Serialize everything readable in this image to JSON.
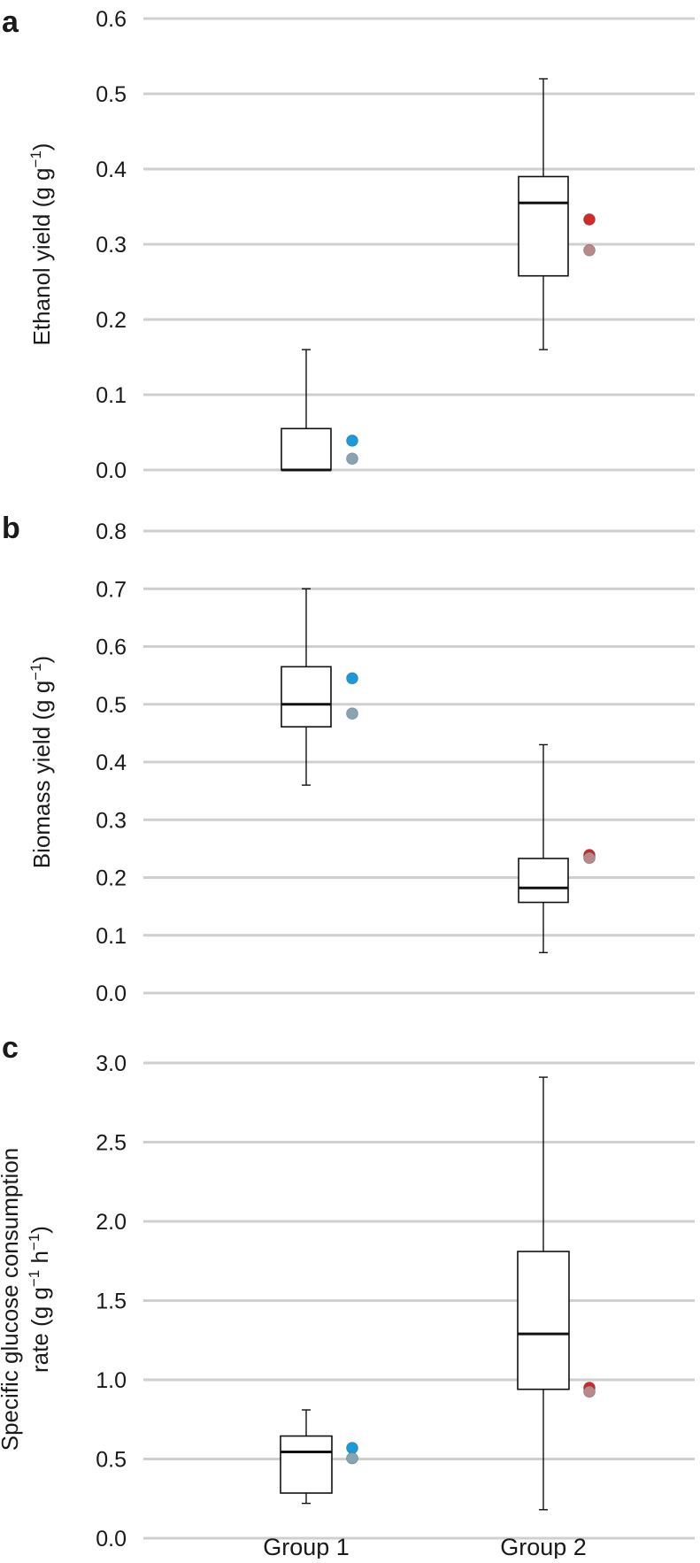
{
  "chart_data": [
    {
      "type": "box",
      "panel_label": "a",
      "ylabel": "Ethanol yield (g g",
      "ylabel_sup": "−1",
      "ylabel_close": ")",
      "ylim": [
        0.0,
        0.6
      ],
      "yticks": [
        0.0,
        0.1,
        0.2,
        0.3,
        0.4,
        0.5,
        0.6
      ],
      "ytick_labels": [
        "0.0",
        "0.1",
        "0.2",
        "0.3",
        "0.4",
        "0.5",
        "0.6"
      ],
      "grid": true,
      "categories": [
        "Group 1",
        "Group 2"
      ],
      "boxes": [
        {
          "category": "Group 1",
          "min": 0.0,
          "q1": 0.0,
          "median": 0.0,
          "q3": 0.055,
          "max": 0.16
        },
        {
          "category": "Group 2",
          "min": 0.16,
          "q1": 0.258,
          "median": 0.355,
          "q3": 0.39,
          "max": 0.52
        }
      ],
      "points": [
        {
          "category": "Group 1",
          "value": 0.039,
          "color": "#1a9ad7"
        },
        {
          "category": "Group 1",
          "value": 0.015,
          "color": "#86a4b4"
        },
        {
          "category": "Group 2",
          "value": 0.333,
          "color": "#d12a2a"
        },
        {
          "category": "Group 2",
          "value": 0.292,
          "color": "#b98888"
        }
      ]
    },
    {
      "type": "box",
      "panel_label": "b",
      "ylabel": "Biomass yield (g g",
      "ylabel_sup": "−1",
      "ylabel_close": ")",
      "ylim": [
        0.0,
        0.8
      ],
      "yticks": [
        0.0,
        0.1,
        0.2,
        0.3,
        0.4,
        0.5,
        0.6,
        0.7,
        0.8
      ],
      "ytick_labels": [
        "0.0",
        "0.1",
        "0.2",
        "0.3",
        "0.4",
        "0.5",
        "0.6",
        "0.7",
        "0.8"
      ],
      "grid": true,
      "categories": [
        "Group 1",
        "Group 2"
      ],
      "boxes": [
        {
          "category": "Group 1",
          "min": 0.36,
          "q1": 0.461,
          "median": 0.5,
          "q3": 0.565,
          "max": 0.7
        },
        {
          "category": "Group 2",
          "min": 0.07,
          "q1": 0.157,
          "median": 0.182,
          "q3": 0.233,
          "max": 0.43
        }
      ],
      "points": [
        {
          "category": "Group 1",
          "value": 0.545,
          "color": "#1a9ad7"
        },
        {
          "category": "Group 1",
          "value": 0.484,
          "color": "#86a4b4"
        },
        {
          "category": "Group 2",
          "value": 0.239,
          "color": "#d12a2a"
        },
        {
          "category": "Group 2",
          "value": 0.234,
          "color": "#b98888"
        }
      ]
    },
    {
      "type": "box",
      "panel_label": "c",
      "ylabel": "Specific glucose consumption",
      "ylabel_line2": "rate (g g",
      "ylabel_sup": "−1",
      "ylabel_mid": " h",
      "ylabel_sup2": "−1",
      "ylabel_close": ")",
      "ylim": [
        0.0,
        3.0
      ],
      "yticks": [
        0.0,
        0.5,
        1.0,
        1.5,
        2.0,
        2.5,
        3.0
      ],
      "ytick_labels": [
        "0.0",
        "0.5",
        "1.0",
        "1.5",
        "2.0",
        "2.5",
        "3.0"
      ],
      "grid": true,
      "categories": [
        "Group 1",
        "Group 2"
      ],
      "category_labels": [
        "Group 1",
        "Group 2"
      ],
      "boxes": [
        {
          "category": "Group 1",
          "min": 0.22,
          "q1": 0.285,
          "median": 0.545,
          "q3": 0.645,
          "max": 0.81
        },
        {
          "category": "Group 2",
          "min": 0.18,
          "q1": 0.94,
          "median": 1.29,
          "q3": 1.81,
          "max": 2.91
        }
      ],
      "points": [
        {
          "category": "Group 1",
          "value": 0.57,
          "color": "#1a9ad7"
        },
        {
          "category": "Group 1",
          "value": 0.505,
          "color": "#86a4b4"
        },
        {
          "category": "Group 2",
          "value": 0.95,
          "color": "#d12a2a"
        },
        {
          "category": "Group 2",
          "value": 0.925,
          "color": "#b98888"
        }
      ]
    }
  ]
}
